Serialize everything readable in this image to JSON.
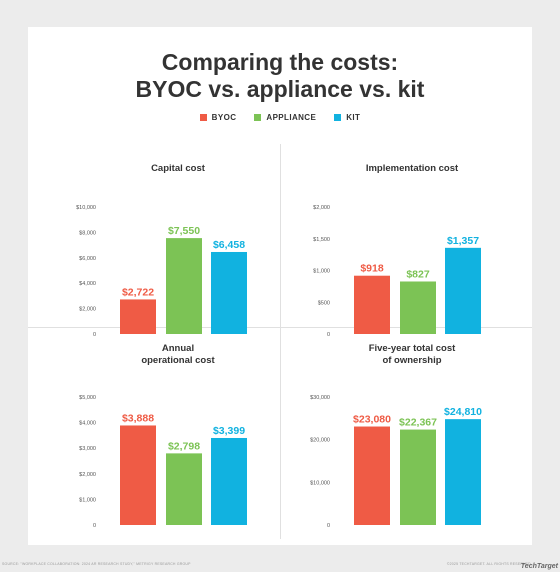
{
  "header": {
    "title_line1": "Comparing the costs:",
    "title_line2": "BYOC vs. appliance vs. kit"
  },
  "legend": [
    {
      "label": "BYOC",
      "color": "#ef5b45"
    },
    {
      "label": "APPLIANCE",
      "color": "#7cc355"
    },
    {
      "label": "KIT",
      "color": "#11b2e0"
    }
  ],
  "chart_data": [
    {
      "type": "bar",
      "title": [
        "Capital cost"
      ],
      "categories": [
        "BYOC",
        "APPLIANCE",
        "KIT"
      ],
      "values": [
        2722,
        7550,
        6458
      ],
      "value_labels": [
        "$2,722",
        "$7,550",
        "$6,458"
      ],
      "ylim": [
        0,
        10000
      ],
      "yticks": [
        0,
        2000,
        4000,
        6000,
        8000,
        10000
      ],
      "ytick_labels": [
        "0",
        "$2,000",
        "$4,000",
        "$6,000",
        "$8,000",
        "$10,000"
      ],
      "colors": [
        "#ef5b45",
        "#7cc355",
        "#11b2e0"
      ]
    },
    {
      "type": "bar",
      "title": [
        "Implementation cost"
      ],
      "categories": [
        "BYOC",
        "APPLIANCE",
        "KIT"
      ],
      "values": [
        918,
        827,
        1357
      ],
      "value_labels": [
        "$918",
        "$827",
        "$1,357"
      ],
      "ylim": [
        0,
        2000
      ],
      "yticks": [
        0,
        500,
        1000,
        1500,
        2000
      ],
      "ytick_labels": [
        "0",
        "$500",
        "$1,000",
        "$1,500",
        "$2,000"
      ],
      "colors": [
        "#ef5b45",
        "#7cc355",
        "#11b2e0"
      ]
    },
    {
      "type": "bar",
      "title": [
        "Annual",
        "operational cost"
      ],
      "categories": [
        "BYOC",
        "APPLIANCE",
        "KIT"
      ],
      "values": [
        3888,
        2798,
        3399
      ],
      "value_labels": [
        "$3,888",
        "$2,798",
        "$3,399"
      ],
      "ylim": [
        0,
        5000
      ],
      "yticks": [
        0,
        1000,
        2000,
        3000,
        4000,
        5000
      ],
      "ytick_labels": [
        "0",
        "$1,000",
        "$2,000",
        "$3,000",
        "$4,000",
        "$5,000"
      ],
      "colors": [
        "#ef5b45",
        "#7cc355",
        "#11b2e0"
      ]
    },
    {
      "type": "bar",
      "title": [
        "Five-year total cost",
        "of ownership"
      ],
      "categories": [
        "BYOC",
        "APPLIANCE",
        "KIT"
      ],
      "values": [
        23080,
        22367,
        24810
      ],
      "value_labels": [
        "$23,080",
        "$22,367",
        "$24,810"
      ],
      "ylim": [
        0,
        30000
      ],
      "yticks": [
        0,
        10000,
        20000,
        30000
      ],
      "ytick_labels": [
        "0",
        "$10,000",
        "$20,000",
        "$30,000"
      ],
      "colors": [
        "#ef5b45",
        "#7cc355",
        "#11b2e0"
      ]
    }
  ],
  "footer": {
    "source": "SOURCE: \"WORKPLACE COLLABORATION: 2024 AR RESEARCH STUDY,\" METRIGY RESEARCH GROUP",
    "copyright": "©2025 TECHTARGET. ALL RIGHTS RESERVED.",
    "logo": "TechTarget"
  }
}
